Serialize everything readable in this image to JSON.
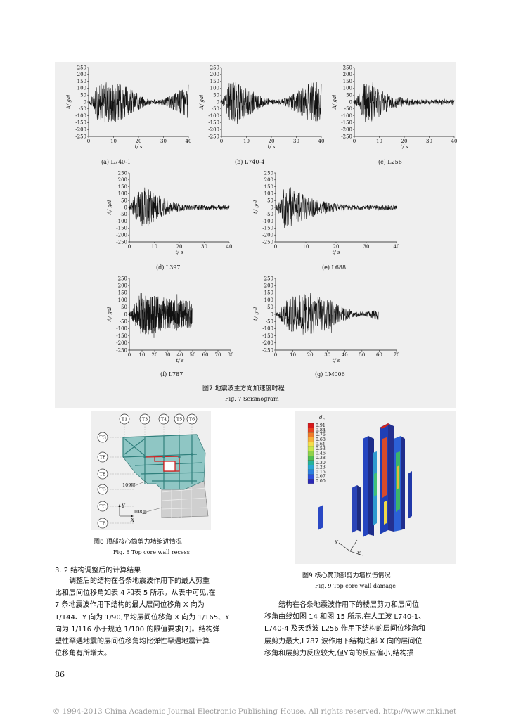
{
  "figure7": {
    "caption_cn": "图7   地震波主方向加速度时程",
    "caption_en": "Fig. 7    Seismogram",
    "charts": [
      {
        "id": "a",
        "caption": "(a) L740-1",
        "xmax": 40,
        "xticks": [
          "0",
          "10",
          "20",
          "30",
          "40"
        ],
        "decay": 0
      },
      {
        "id": "b",
        "caption": "(b) L740-4",
        "xmax": 40,
        "xticks": [
          "0",
          "10",
          "20",
          "30",
          "40"
        ],
        "decay": 0
      },
      {
        "id": "c",
        "caption": "(c) L256",
        "xmax": 40,
        "xticks": [
          "0",
          "10",
          "20",
          "30",
          "40"
        ],
        "decay": 1
      },
      {
        "id": "d",
        "caption": "(d) L397",
        "xmax": 40,
        "xticks": [
          "0",
          "10",
          "20",
          "30",
          "40"
        ],
        "decay": 1
      },
      {
        "id": "e",
        "caption": "(e) L688",
        "xmax": 40,
        "xticks": [
          "0",
          "10",
          "20",
          "30",
          "40"
        ],
        "decay": 2
      },
      {
        "id": "f",
        "caption": "(f) L787",
        "xmax": 80,
        "xticks": [
          "0",
          "10",
          "20",
          "30",
          "40",
          "50",
          "60",
          "70",
          "80"
        ],
        "decay": 3
      },
      {
        "id": "g",
        "caption": "(g) LM006",
        "xmax": 70,
        "xticks": [
          "0",
          "10",
          "20",
          "30",
          "40",
          "50",
          "60",
          "70"
        ],
        "decay": 0
      }
    ],
    "yticks": [
      "250",
      "200",
      "150",
      "100",
      "50",
      "0",
      "-50",
      "-100",
      "-150",
      "-200",
      "-250"
    ],
    "ylabel": "A/ gal",
    "xlabel": "t/ s"
  },
  "chart_data": [
    {
      "type": "line",
      "title": "(a) L740-1",
      "xlabel": "t/ s",
      "ylabel": "A/ gal",
      "xlim": [
        0,
        40
      ],
      "ylim": [
        -250,
        250
      ]
    },
    {
      "type": "line",
      "title": "(b) L740-4",
      "xlabel": "t/ s",
      "ylabel": "A/ gal",
      "xlim": [
        0,
        40
      ],
      "ylim": [
        -250,
        250
      ]
    },
    {
      "type": "line",
      "title": "(c) L256",
      "xlabel": "t/ s",
      "ylabel": "A/ gal",
      "xlim": [
        0,
        40
      ],
      "ylim": [
        -250,
        250
      ]
    },
    {
      "type": "line",
      "title": "(d) L397",
      "xlabel": "t/ s",
      "ylabel": "A/ gal",
      "xlim": [
        0,
        40
      ],
      "ylim": [
        -250,
        250
      ]
    },
    {
      "type": "line",
      "title": "(e) L688",
      "xlabel": "t/ s",
      "ylabel": "A/ gal",
      "xlim": [
        0,
        40
      ],
      "ylim": [
        -250,
        250
      ]
    },
    {
      "type": "line",
      "title": "(f) L787",
      "xlabel": "t/ s",
      "ylabel": "A/ gal",
      "xlim": [
        0,
        80
      ],
      "ylim": [
        -250,
        250
      ]
    },
    {
      "type": "line",
      "title": "(g) LM006",
      "xlabel": "t/ s",
      "ylabel": "A/ gal",
      "xlim": [
        0,
        70
      ],
      "ylim": [
        -250,
        250
      ]
    }
  ],
  "figure8": {
    "caption_cn": "图8   顶部核心筒剪力墙缩进情况",
    "caption_en": "Fig. 8    Top core wall recess",
    "top_labels": [
      "T1",
      "T3",
      "T4",
      "T5",
      "T6"
    ],
    "side_labels": [
      "TG",
      "TF",
      "TE",
      "TD",
      "TC",
      "TB"
    ],
    "floor_labels": [
      "109层",
      "108层"
    ],
    "axis_y": "Y",
    "axis_x": "X"
  },
  "figure9": {
    "caption_cn": "图9   核心筒顶部剪力墙损伤情况",
    "caption_en": "Fig. 9    Top core wall damage",
    "legend_title": "d",
    "legend_sub": "c",
    "legend_values": [
      "0.91",
      "0.84",
      "0.76",
      "0.68",
      "0.61",
      "0.53",
      "0.46",
      "0.38",
      "0.30",
      "0.23",
      "0.15",
      "0.07",
      "0.00"
    ],
    "legend_colors": [
      "#d7191c",
      "#e8421f",
      "#f07c2a",
      "#f6b03a",
      "#f4dd4b",
      "#c9e64b",
      "#8fd24a",
      "#4fbf52",
      "#26b39a",
      "#2aa7d4",
      "#2b7fe0",
      "#2e4fdc",
      "#2a28b8"
    ],
    "axis_labels": [
      "Y",
      "X"
    ]
  },
  "section": {
    "heading": "3. 2    结构调整后的计算结果",
    "left_lines": [
      "调整后的结构在各条地震波作用下的最大剪重",
      "比和层间位移角如表 4 和表 5 所示。从表中可见,在",
      "7 条地震波作用下结构的最大层间位移角 X 向为",
      "1/144、Y 向为 1/90,平均层间位移角 X 向为 1/165、Y",
      "向为 1/116 小于规范 1/100 的限值要求[7]。结构弹",
      "塑性罕遇地震的层间位移角均比弹性罕遇地震计算",
      "位移角有所增大。"
    ],
    "right_lines": [
      "结构在各条地震波作用下的楼层剪力和层间位",
      "移角曲线如图 14 和图 15 所示,在人工波 L740-1、",
      "L740-4 及天然波 L256 作用下结构的层间位移角和",
      "层剪力最大,L787 波作用下结构底部 X 向的层间位",
      "移角和层剪力反应较大,但Y向的反应偏小,结构损"
    ]
  },
  "page_number": "86",
  "footer": "© 1994-2013 China Academic Journal Electronic Publishing House. All rights reserved.    http://www.cnki.net"
}
